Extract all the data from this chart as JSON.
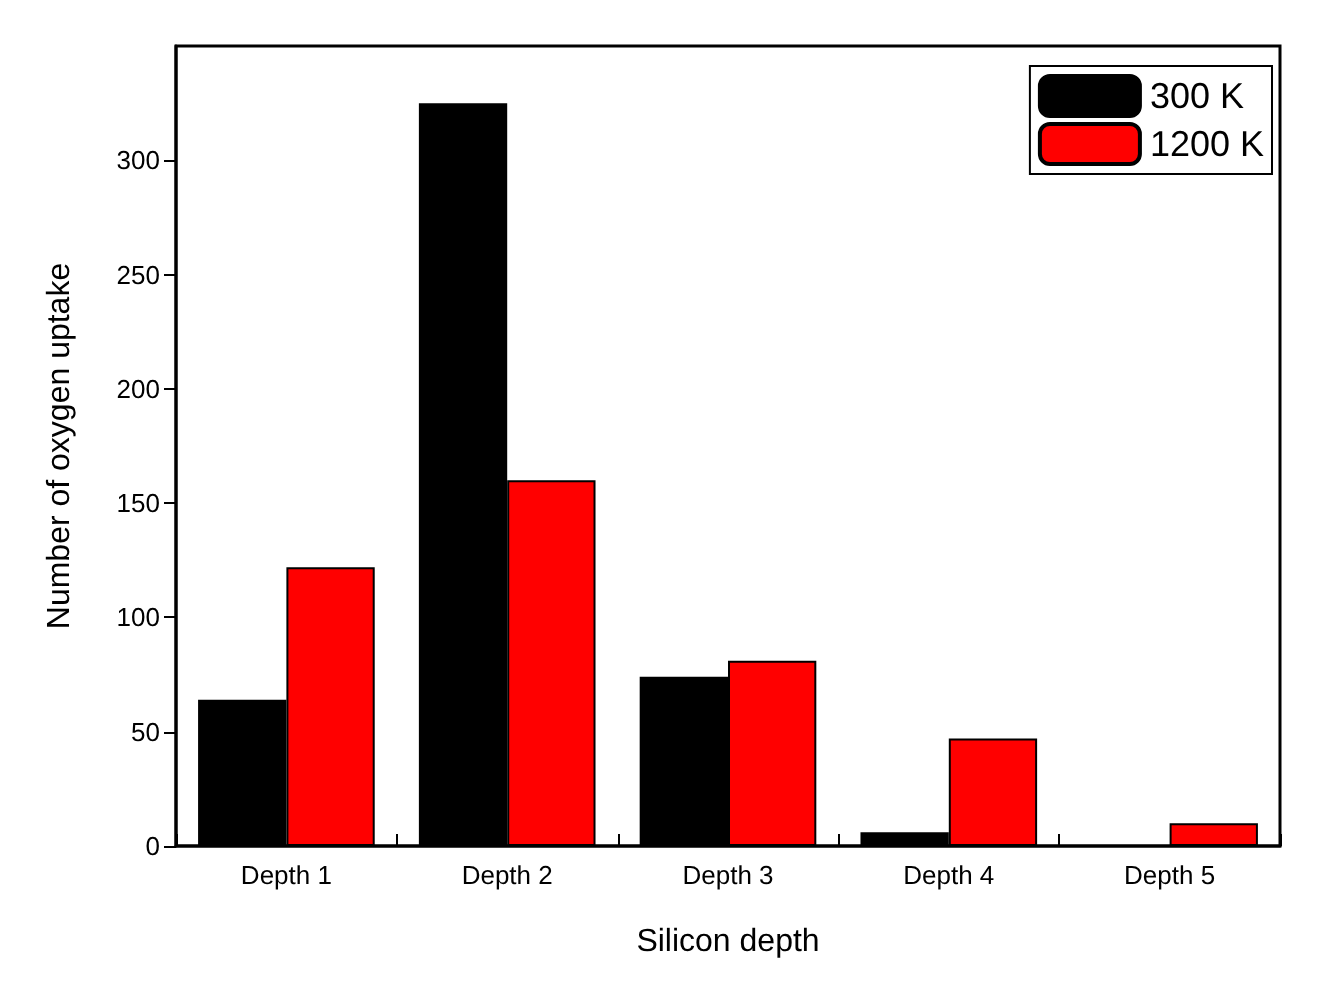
{
  "chart_data": {
    "type": "bar",
    "xlabel": "Silicon depth",
    "ylabel": "Number of oxygen uptake",
    "categories": [
      "Depth 1",
      "Depth 2",
      "Depth 3",
      "Depth 4",
      "Depth 5"
    ],
    "series": [
      {
        "name": "300 K",
        "color": "#000000",
        "values": [
          64,
          325,
          74,
          6,
          0
        ]
      },
      {
        "name": "1200 K",
        "color": "#ff0000",
        "values": [
          122,
          160,
          81,
          47,
          10
        ]
      }
    ],
    "ylim": [
      0,
      350
    ],
    "yticks": [
      0,
      50,
      100,
      150,
      200,
      250,
      300
    ],
    "grid": false,
    "legend": "top right"
  }
}
